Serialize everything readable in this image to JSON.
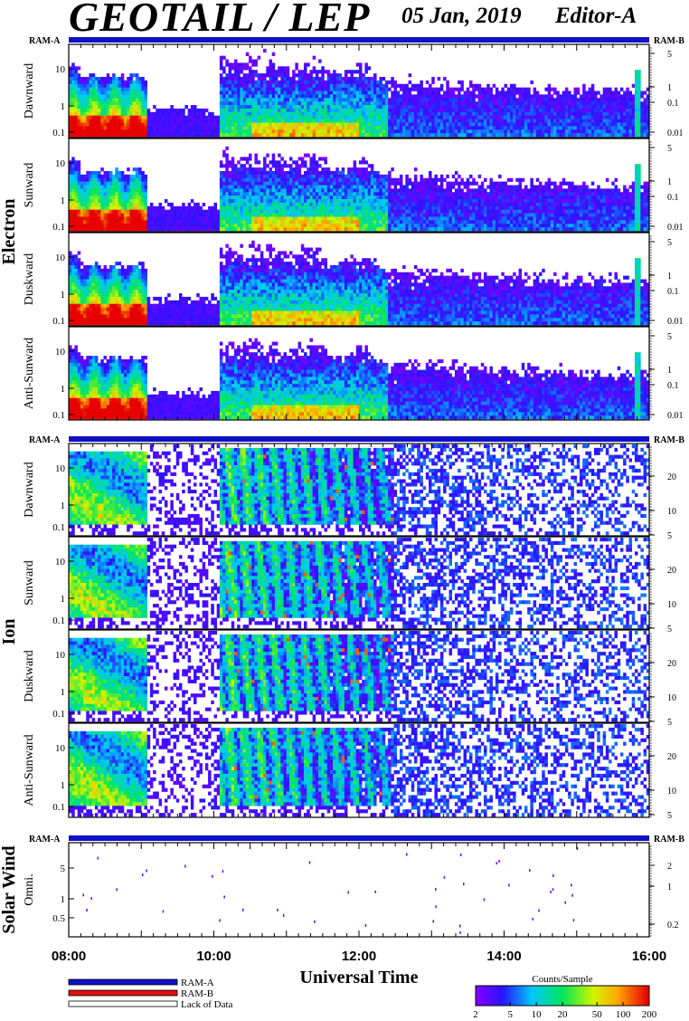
{
  "header": {
    "title": "GEOTAIL / LEP",
    "date": "05 Jan, 2019",
    "editor": "Editor-A"
  },
  "colors": {
    "ram_a": "#1010c8",
    "ram_b": "#e01010",
    "lack_of_data": "#ffffff"
  },
  "colorbar": {
    "title": "Counts/Sample",
    "ticks": [
      "2",
      "5",
      "10",
      "20",
      "50",
      "100",
      "200"
    ],
    "scale": "log"
  },
  "legend": {
    "items": [
      {
        "label": "RAM-A",
        "color": "#1010c8"
      },
      {
        "label": "RAM-B",
        "color": "#e01010"
      },
      {
        "label": "Lack of Data",
        "color": "#ffffff"
      }
    ]
  },
  "chart_data": {
    "type": "heatmap",
    "xlabel": "Universal Time",
    "xticks": [
      "08:00",
      "10:00",
      "12:00",
      "14:00",
      "16:00"
    ],
    "xlim_hours": [
      8,
      16
    ],
    "groups": [
      {
        "name": "Electron",
        "bar_left": "RAM-A",
        "bar_right": "RAM-B",
        "panels": [
          {
            "label": "Dawnward",
            "left_ticks": [
              "10",
              "1",
              "0.1"
            ],
            "right_ticks": [
              "5",
              "1",
              "0.1",
              "0.01"
            ]
          },
          {
            "label": "Sunward",
            "left_ticks": [
              "10",
              "1",
              "0.1"
            ],
            "right_ticks": [
              "5",
              "1",
              "0.1",
              "0.01"
            ]
          },
          {
            "label": "Duskward",
            "left_ticks": [
              "10",
              "1",
              "0.1"
            ],
            "right_ticks": [
              "5",
              "1",
              "0.1",
              "0.01"
            ]
          },
          {
            "label": "Anti-Sunward",
            "left_ticks": [
              "10",
              "1",
              "0.1"
            ],
            "right_ticks": [
              "5",
              "1",
              "0.1",
              "0.01"
            ]
          }
        ]
      },
      {
        "name": "Ion",
        "bar_left": "RAM-A",
        "bar_right": "RAM-B",
        "panels": [
          {
            "label": "Dawnward",
            "left_ticks": [
              "10",
              "1",
              "0.1"
            ],
            "right_ticks": [
              "20",
              "10",
              "5"
            ]
          },
          {
            "label": "Sunward",
            "left_ticks": [
              "10",
              "1",
              "0.1"
            ],
            "right_ticks": [
              "20",
              "10",
              "5"
            ]
          },
          {
            "label": "Duskward",
            "left_ticks": [
              "10",
              "1",
              "0.1"
            ],
            "right_ticks": [
              "20",
              "10",
              "5"
            ]
          },
          {
            "label": "Anti-Sunward",
            "left_ticks": [
              "10",
              "1",
              "0.1"
            ],
            "right_ticks": [
              "20",
              "10",
              "5"
            ]
          }
        ]
      },
      {
        "name": "Solar Wind",
        "bar_left": "RAM-A",
        "bar_right": "RAM-B",
        "panels": [
          {
            "label": "Omni.",
            "left_ticks": [
              "5",
              "1",
              "0.5"
            ],
            "right_ticks": [
              "2",
              "1",
              "0.2"
            ]
          }
        ]
      }
    ]
  }
}
